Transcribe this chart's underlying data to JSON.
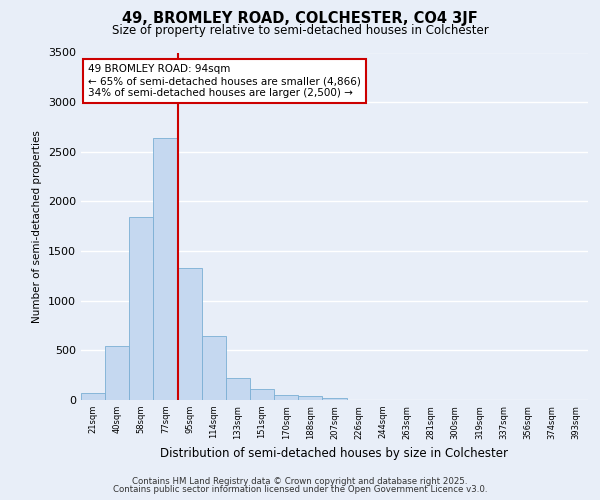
{
  "title1": "49, BROMLEY ROAD, COLCHESTER, CO4 3JF",
  "title2": "Size of property relative to semi-detached houses in Colchester",
  "xlabel": "Distribution of semi-detached houses by size in Colchester",
  "ylabel": "Number of semi-detached properties",
  "bin_labels": [
    "21sqm",
    "40sqm",
    "58sqm",
    "77sqm",
    "95sqm",
    "114sqm",
    "133sqm",
    "151sqm",
    "170sqm",
    "188sqm",
    "207sqm",
    "226sqm",
    "244sqm",
    "263sqm",
    "281sqm",
    "300sqm",
    "319sqm",
    "337sqm",
    "356sqm",
    "374sqm",
    "393sqm"
  ],
  "bar_values": [
    70,
    540,
    1840,
    2640,
    1330,
    640,
    220,
    110,
    55,
    40,
    25,
    5,
    0,
    0,
    0,
    0,
    0,
    0,
    0,
    0,
    0
  ],
  "bar_color": "#c5d8f0",
  "bar_edge_color": "#7bafd4",
  "vline_x_index": 4,
  "vline_color": "#cc0000",
  "annotation_title": "49 BROMLEY ROAD: 94sqm",
  "annotation_line1": "← 65% of semi-detached houses are smaller (4,866)",
  "annotation_line2": "34% of semi-detached houses are larger (2,500) →",
  "annotation_box_color": "#cc0000",
  "ylim": [
    0,
    3500
  ],
  "yticks": [
    0,
    500,
    1000,
    1500,
    2000,
    2500,
    3000,
    3500
  ],
  "background_color": "#e8eef8",
  "grid_color": "#ffffff",
  "footer1": "Contains HM Land Registry data © Crown copyright and database right 2025.",
  "footer2": "Contains public sector information licensed under the Open Government Licence v3.0."
}
